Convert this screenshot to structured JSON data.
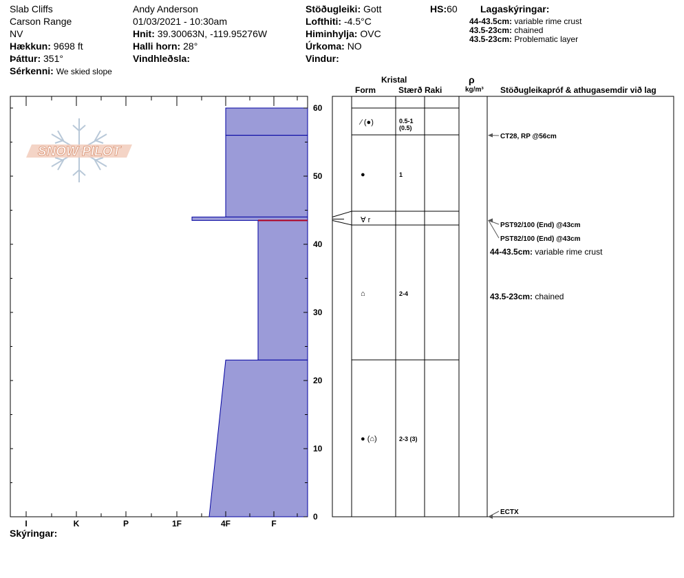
{
  "header": {
    "location": "Slab Cliffs",
    "range": "Carson Range",
    "state": "NV",
    "elevation_label": "Hækkun:",
    "elevation_value": "9698 ft",
    "aspect_label": "Þáttur:",
    "aspect_value": "351°",
    "features_label": "Sérkenni:",
    "features_value": "We skied slope",
    "observer": "Andy Anderson",
    "datetime": "01/03/2021 - 10:30am",
    "coords_label": "Hnit:",
    "coords_value": "39.30063N, -119.95276W",
    "slope_label": "Halli horn:",
    "slope_value": "28°",
    "wind_loading_label": "Vindhleðsla:",
    "stability_label": "Stöðugleiki:",
    "stability_value": "Gott",
    "air_temp_label": "Lofthiti:",
    "air_temp_value": "-4.5°C",
    "sky_label": "Himinhylja:",
    "sky_value": "OVC",
    "precip_label": "Úrkoma:",
    "precip_value": "NO",
    "wind_label": "Vindur:",
    "hs_label": "HS:",
    "hs_value": "60",
    "layers_title": "Lagaskýringar:",
    "layer_notes": [
      {
        "range": "44-43.5cm:",
        "text": "variable rime crust"
      },
      {
        "range": "43.5-23cm:",
        "text": "chained"
      },
      {
        "range": "43.5-23cm:",
        "text": "Problematic layer"
      }
    ]
  },
  "logo": {
    "text": "SNOW PILOT"
  },
  "columns": {
    "crystal": "Kristal",
    "form": "Form",
    "size": "Stærð",
    "moisture": "Raki",
    "rho": "ρ",
    "density_unit": "kg/m³",
    "tests_title": "Stöðugleikapróf & athugasemdir við lag"
  },
  "footer": {
    "comments_label": "Skýringar:"
  },
  "colors": {
    "layer_fill": "#9b9bd8",
    "layer_stroke": "#0000a0",
    "problem_line": "#b00020"
  },
  "chart_data": {
    "type": "bar",
    "description_kind": "snow profile hardness",
    "y_axis": {
      "min": 0,
      "max": 60,
      "ticks": [
        0,
        10,
        20,
        30,
        40,
        50,
        60
      ],
      "unit": "cm"
    },
    "x_axis": {
      "categories": [
        "I",
        "K",
        "P",
        "1F",
        "4F",
        "F"
      ]
    },
    "hardness_layers": [
      {
        "top": 60,
        "bottom": 56,
        "hardness_top": "4F",
        "hardness_bottom": "4F"
      },
      {
        "top": 56,
        "bottom": 44,
        "hardness_top": "4F",
        "hardness_bottom": "4F"
      },
      {
        "top": 44,
        "bottom": 43.5,
        "hardness_top": "1F+",
        "hardness_bottom": "1F+"
      },
      {
        "top": 43.5,
        "bottom": 23,
        "hardness_top": "4F-F",
        "hardness_bottom": "4F-F"
      },
      {
        "top": 23,
        "bottom": 0,
        "hardness_top": "4F",
        "hardness_bottom": "1F-4F"
      }
    ],
    "problem_layer_depth": 43.5,
    "layer_boundaries": [
      60,
      56,
      44,
      43.5,
      23,
      0
    ],
    "layers": [
      {
        "depth": 58,
        "form": "⁄ (●)",
        "size": "0.5-1",
        "size_sub": "(0.5)"
      },
      {
        "depth": 50,
        "form": "●",
        "size": "1",
        "size_sub": ""
      },
      {
        "depth": 43.7,
        "form": "∀ r",
        "size": "",
        "size_sub": ""
      },
      {
        "depth": 33,
        "form": "⌂",
        "size": "2-4",
        "size_sub": ""
      },
      {
        "depth": 11.5,
        "form": "● (⌂)",
        "size": "2-3 (3)",
        "size_sub": ""
      }
    ],
    "tests": [
      {
        "depth": 56,
        "label": "CT28, RP @56cm"
      },
      {
        "depth": 43.5,
        "label": "PST92/100 (End) @43cm"
      },
      {
        "depth": 43.5,
        "label": "PST82/100 (End) @43cm"
      },
      {
        "depth": 0,
        "label": "ECTX"
      }
    ],
    "layer_comments": [
      {
        "range": "44-43.5cm:",
        "text": "variable rime crust"
      },
      {
        "range": "43.5-23cm:",
        "text": "chained"
      }
    ]
  }
}
